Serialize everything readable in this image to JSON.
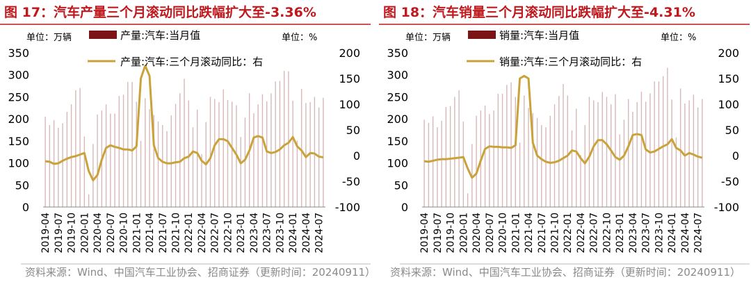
{
  "chart_data": [
    {
      "type": "combo",
      "title": "图 17：汽车产量三个月滚动同比跌幅扩大至-3.36%",
      "y_unit_label": "单位：万辆",
      "y2_unit_label": "单位：%",
      "source": "资料来源：Wind、中国汽车工业协会、招商证券（更新时间：20240911）",
      "categories": [
        "2019-04",
        null,
        null,
        "2019-07",
        null,
        null,
        "2019-10",
        null,
        null,
        "2020-01",
        null,
        null,
        "2020-04",
        null,
        null,
        "2020-07",
        null,
        null,
        "2020-10",
        null,
        null,
        "2021-01",
        null,
        null,
        "2021-04",
        null,
        null,
        "2021-07",
        null,
        null,
        "2021-10",
        null,
        null,
        "2022-01",
        null,
        null,
        "2022-04",
        null,
        null,
        "2022-07",
        null,
        null,
        "2022-10",
        null,
        null,
        "2023-01",
        null,
        null,
        "2023-04",
        null,
        null,
        "2023-07",
        null,
        null,
        "2023-10",
        null,
        null,
        "2024-01",
        null,
        null,
        "2024-04",
        null,
        null,
        "2024-07",
        null
      ],
      "series": [
        {
          "name": "产量:汽车:当月值",
          "type": "bar",
          "color": "#7b1416",
          "values": [
            205,
            186,
            197,
            180,
            190,
            216,
            233,
            265,
            270,
            160,
            29,
            143,
            210,
            219,
            233,
            212,
            212,
            252,
            255,
            284,
            284,
            239,
            150,
            247,
            222,
            209,
            194,
            186,
            172,
            208,
            234,
            258,
            291,
            242,
            181,
            221,
            120,
            193,
            250,
            245,
            238,
            267,
            243,
            239,
            231,
            159,
            203,
            258,
            213,
            233,
            256,
            240,
            258,
            285,
            286,
            309,
            308,
            241,
            151,
            268,
            236,
            238,
            250,
            226,
            248
          ]
        },
        {
          "name": "产量:汽车:三个月滚动同比：右",
          "type": "line",
          "axis": "y2",
          "color": "#c9a23a",
          "values": [
            -11,
            -12,
            -16,
            -15,
            -10,
            -6,
            -3,
            -1,
            2,
            5,
            -30,
            -48,
            -38,
            -8,
            15,
            20,
            17,
            15,
            12,
            12,
            10,
            18,
            150,
            175,
            155,
            20,
            -5,
            -12,
            -15,
            -15,
            -13,
            -12,
            -5,
            -2,
            8,
            5,
            -10,
            -17,
            -5,
            20,
            32,
            32,
            28,
            15,
            2,
            -15,
            -8,
            10,
            35,
            38,
            35,
            8,
            5,
            7,
            12,
            20,
            25,
            36,
            18,
            10,
            -3,
            5,
            4,
            -2,
            -3.36
          ]
        }
      ],
      "ylim": [
        0,
        350
      ],
      "yticks": [
        0,
        50,
        100,
        150,
        200,
        250,
        300,
        350
      ],
      "y2lim": [
        -100,
        200
      ],
      "y2ticks": [
        -100,
        -50,
        0,
        50,
        100,
        150,
        200
      ]
    },
    {
      "type": "combo",
      "title": "图 18：汽车销量三个月滚动同比跌幅扩大至-4.31%",
      "y_unit_label": "单位：万辆",
      "y2_unit_label": "单位：%",
      "source": "资料来源：Wind、中国汽车工业协会、招商证券（更新时间：20240911）",
      "categories": [
        "2019-04",
        null,
        null,
        "2019-07",
        null,
        null,
        "2019-10",
        null,
        null,
        "2020-01",
        null,
        null,
        "2020-04",
        null,
        null,
        "2020-07",
        null,
        null,
        "2020-10",
        null,
        null,
        "2021-01",
        null,
        null,
        "2021-04",
        null,
        null,
        "2021-07",
        null,
        null,
        "2021-10",
        null,
        null,
        "2022-01",
        null,
        null,
        "2022-04",
        null,
        null,
        "2022-07",
        null,
        null,
        "2022-10",
        null,
        null,
        "2023-01",
        null,
        null,
        "2023-04",
        null,
        null,
        "2023-07",
        null,
        null,
        "2023-10",
        null,
        null,
        "2024-01",
        null,
        null,
        "2024-04",
        null,
        null,
        "2024-07",
        null
      ],
      "series": [
        {
          "name": "销量:汽车:当月值",
          "type": "bar",
          "color": "#7b1416",
          "values": [
            198,
            191,
            206,
            181,
            196,
            227,
            229,
            250,
            265,
            194,
            31,
            143,
            207,
            219,
            230,
            211,
            219,
            257,
            257,
            277,
            283,
            250,
            146,
            253,
            225,
            213,
            202,
            186,
            181,
            207,
            233,
            252,
            279,
            253,
            174,
            223,
            118,
            186,
            250,
            242,
            238,
            261,
            250,
            233,
            256,
            165,
            198,
            245,
            216,
            238,
            262,
            239,
            258,
            285,
            285,
            297,
            316,
            244,
            158,
            269,
            235,
            242,
            255,
            226,
            245
          ]
        },
        {
          "name": "销量:汽车:三个月滚动同比：右",
          "type": "line",
          "axis": "y2",
          "color": "#c9a23a",
          "values": [
            -11,
            -12,
            -10,
            -8,
            -7,
            -7,
            -6,
            -5,
            -4,
            -3,
            -25,
            -43,
            -35,
            -10,
            13,
            18,
            17,
            17,
            16,
            16,
            15,
            20,
            150,
            155,
            150,
            25,
            0,
            -7,
            -12,
            -14,
            -13,
            -10,
            -5,
            0,
            10,
            8,
            -5,
            -15,
            -2,
            18,
            30,
            30,
            22,
            10,
            -3,
            -8,
            0,
            18,
            40,
            42,
            40,
            12,
            6,
            8,
            13,
            18,
            22,
            32,
            15,
            10,
            0,
            5,
            2,
            -2,
            -4.31
          ]
        }
      ],
      "ylim": [
        0,
        350
      ],
      "yticks": [
        0,
        50,
        100,
        150,
        200,
        250,
        300,
        350
      ],
      "y2lim": [
        -100,
        200
      ],
      "y2ticks": [
        -100,
        -50,
        0,
        50,
        100,
        150,
        200
      ]
    }
  ]
}
